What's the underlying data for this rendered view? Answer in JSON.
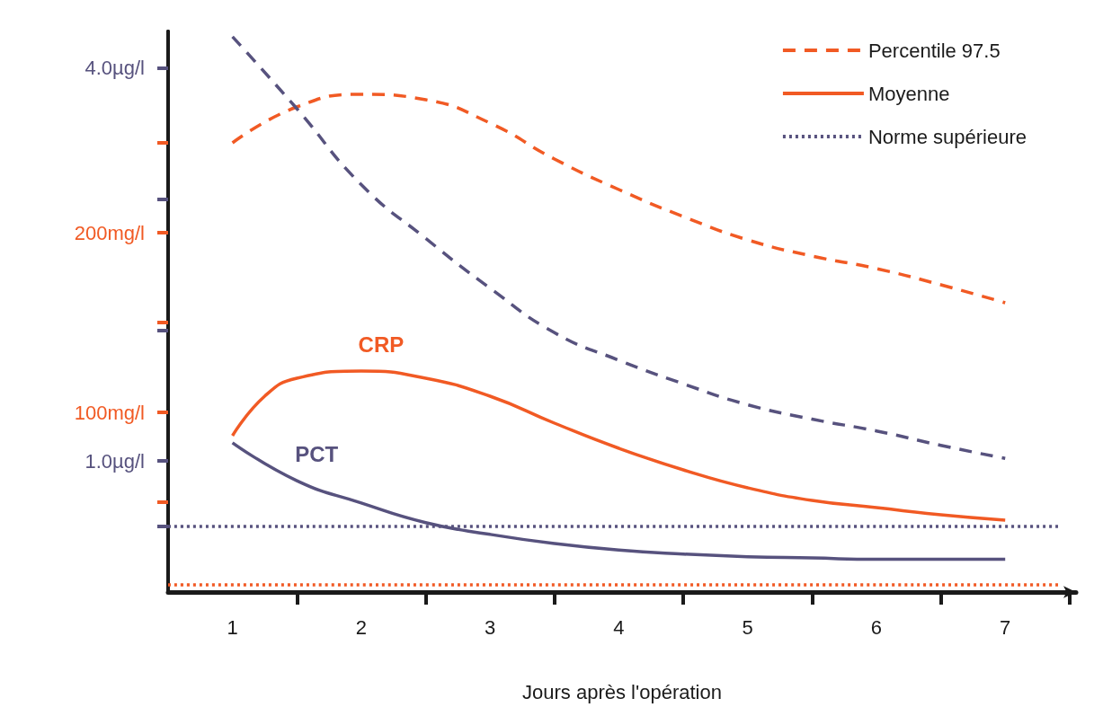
{
  "chart_data": {
    "type": "line",
    "xlabel": "Jours après l'opération",
    "xlim": [
      0.5,
      7.55
    ],
    "xticks": [
      {
        "value": 1,
        "label": "1"
      },
      {
        "value": 1.5,
        "label": null
      },
      {
        "value": 2,
        "label": "2"
      },
      {
        "value": 2.5,
        "label": null
      },
      {
        "value": 3,
        "label": "3"
      },
      {
        "value": 3.5,
        "label": null
      },
      {
        "value": 4,
        "label": "4"
      },
      {
        "value": 4.5,
        "label": null
      },
      {
        "value": 5,
        "label": "5"
      },
      {
        "value": 5.5,
        "label": null
      },
      {
        "value": 6,
        "label": "6"
      },
      {
        "value": 6.5,
        "label": null
      },
      {
        "value": 7,
        "label": "7"
      },
      {
        "value": 7.5,
        "label": null
      }
    ],
    "ylim": [
      0,
      312
    ],
    "yticks": [
      {
        "value": 50,
        "label": null
      },
      {
        "value": 100,
        "label": "100mg/l"
      },
      {
        "value": 150,
        "label": null
      },
      {
        "value": 200,
        "label": "200mg/l"
      },
      {
        "value": 250,
        "label": null
      }
    ],
    "y2lim": [
      0,
      4.28
    ],
    "y2ticks": [
      {
        "value": 0.5,
        "label": null
      },
      {
        "value": 1,
        "label": "1.0µg/l"
      },
      {
        "value": 2,
        "label": null
      },
      {
        "value": 3,
        "label": null
      },
      {
        "value": 4,
        "label": "4.0µg/l"
      }
    ],
    "legend": "top right",
    "marker": "none",
    "grid": false,
    "series": [
      {
        "name": "Percentile 97.5",
        "color": "#f15a24",
        "line_style": "dashed",
        "x": [
          1,
          1.5,
          2,
          2.5,
          3,
          3.5,
          4,
          4.5,
          5,
          5.5,
          6,
          6.5,
          7
        ],
        "values": [
          250,
          270,
          277,
          274,
          261,
          241,
          224,
          209,
          196,
          187,
          180,
          171,
          161
        ]
      },
      {
        "color": "#57527e",
        "line_style": "dashed",
        "axis": "y2",
        "x": [
          1,
          1.5,
          2,
          2.5,
          3,
          3.5,
          4,
          4.5,
          5,
          5.5,
          6,
          6.5,
          7
        ],
        "values": [
          4.24,
          3.69,
          3.11,
          2.7,
          2.32,
          1.98,
          1.77,
          1.59,
          1.43,
          1.32,
          1.23,
          1.12,
          1.02
        ]
      },
      {
        "name": "Moyenne",
        "color": "#f15a24",
        "line_style": "solid",
        "x": [
          1,
          1.25,
          1.5,
          2,
          2.5,
          3,
          3.5,
          4,
          4.5,
          5,
          5.5,
          6,
          6.5,
          7
        ],
        "values": [
          87,
          109,
          119,
          123,
          119,
          109,
          94,
          80,
          68,
          58,
          51,
          47,
          43,
          40
        ]
      },
      {
        "color": "#57527e",
        "line_style": "solid",
        "axis": "y2",
        "x": [
          1,
          1.5,
          2,
          2.5,
          3,
          3.5,
          4,
          4.5,
          5,
          5.5,
          6,
          7
        ],
        "values": [
          1.14,
          0.85,
          0.68,
          0.53,
          0.44,
          0.37,
          0.32,
          0.29,
          0.27,
          0.26,
          0.25,
          0.25
        ]
      },
      {
        "name": "Norme supérieure",
        "color": "#57527e",
        "line_style": "dotted",
        "axis": "y2",
        "x": [
          0.5,
          7.43
        ],
        "values": [
          0.5,
          0.5
        ]
      },
      {
        "color": "#f15a24",
        "line_style": "dotted",
        "x": [
          0.5,
          7.43
        ],
        "values": [
          4,
          4
        ]
      }
    ],
    "annotations": [
      {
        "text": "CRP",
        "x": 2,
        "y": 123
      },
      {
        "text": "PCT",
        "x": 1.5,
        "y": 62
      }
    ]
  }
}
